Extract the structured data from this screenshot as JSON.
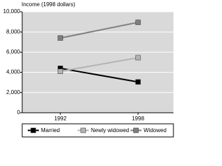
{
  "chart_data": {
    "type": "line",
    "y_label": "Income (1998 dollars)",
    "categories": [
      "1992",
      "1998"
    ],
    "series": [
      {
        "name": "Married",
        "color": "#000000",
        "values": [
          4400,
          3050
        ]
      },
      {
        "name": "Newly widowed",
        "color": "#b3b3b3",
        "values": [
          4100,
          5450
        ]
      },
      {
        "name": "Widowed",
        "color": "#7f7f7f",
        "values": [
          7400,
          8950
        ]
      }
    ],
    "ylim": [
      0,
      10000
    ],
    "yticks": [
      0,
      {
        "value": 2000,
        "label": "2,000"
      },
      {
        "value": 4000,
        "label": "4,000"
      },
      {
        "value": 6000,
        "label": "6,000"
      },
      {
        "value": 8000,
        "label": "8,000"
      },
      {
        "value": 10000,
        "label": "10,000"
      }
    ],
    "grid": true,
    "legend": "bottom"
  }
}
